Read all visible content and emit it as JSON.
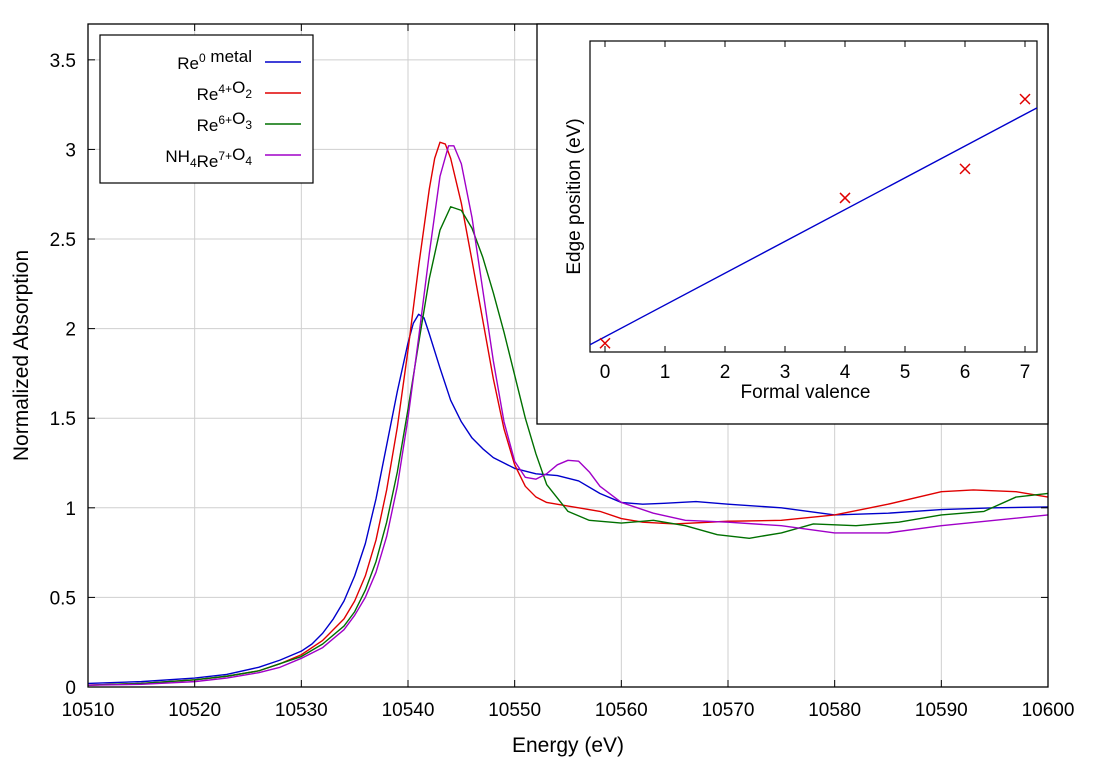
{
  "chart_data": [
    {
      "type": "line",
      "xlabel": "Energy (eV)",
      "ylabel": "Normalized Absorption",
      "xlim": [
        10510,
        10600
      ],
      "ylim": [
        0,
        3.7
      ],
      "x_ticks": [
        10510,
        10520,
        10530,
        10540,
        10550,
        10560,
        10570,
        10580,
        10590,
        10600
      ],
      "y_ticks": [
        0,
        0.5,
        1,
        1.5,
        2,
        2.5,
        3,
        3.5
      ],
      "y_tick_labels": [
        "0",
        "0.5",
        "1",
        "1.5",
        "2",
        "2.5",
        "3",
        "3.5"
      ],
      "grid": true,
      "legend_position": "top-left",
      "series": [
        {
          "name": "Re0 metal",
          "label_parts": [
            {
              "t": "Re"
            },
            {
              "t": "0",
              "sup": true
            },
            {
              "t": " metal"
            }
          ],
          "color": "#0000cc",
          "points": [
            [
              10510,
              0.02
            ],
            [
              10515,
              0.03
            ],
            [
              10520,
              0.05
            ],
            [
              10523,
              0.07
            ],
            [
              10526,
              0.11
            ],
            [
              10528,
              0.15
            ],
            [
              10530,
              0.2
            ],
            [
              10531,
              0.24
            ],
            [
              10532,
              0.3
            ],
            [
              10533,
              0.38
            ],
            [
              10534,
              0.48
            ],
            [
              10535,
              0.62
            ],
            [
              10536,
              0.8
            ],
            [
              10537,
              1.05
            ],
            [
              10538,
              1.35
            ],
            [
              10539,
              1.65
            ],
            [
              10540,
              1.92
            ],
            [
              10540.5,
              2.03
            ],
            [
              10541,
              2.08
            ],
            [
              10541.5,
              2.06
            ],
            [
              10542,
              1.97
            ],
            [
              10543,
              1.78
            ],
            [
              10544,
              1.6
            ],
            [
              10545,
              1.48
            ],
            [
              10546,
              1.39
            ],
            [
              10547,
              1.33
            ],
            [
              10548,
              1.28
            ],
            [
              10549,
              1.25
            ],
            [
              10550,
              1.22
            ],
            [
              10552,
              1.19
            ],
            [
              10554,
              1.18
            ],
            [
              10556,
              1.15
            ],
            [
              10558,
              1.08
            ],
            [
              10560,
              1.03
            ],
            [
              10562,
              1.02
            ],
            [
              10564,
              1.025
            ],
            [
              10567,
              1.035
            ],
            [
              10570,
              1.02
            ],
            [
              10575,
              1.0
            ],
            [
              10580,
              0.96
            ],
            [
              10585,
              0.97
            ],
            [
              10590,
              0.99
            ],
            [
              10595,
              1.0
            ],
            [
              10600,
              1.005
            ]
          ]
        },
        {
          "name": "Re4+O2",
          "label_parts": [
            {
              "t": "Re"
            },
            {
              "t": "4+",
              "sup": true
            },
            {
              "t": "O"
            },
            {
              "t": "2",
              "sub": true
            }
          ],
          "color": "#e00000",
          "points": [
            [
              10510,
              0.01
            ],
            [
              10515,
              0.02
            ],
            [
              10520,
              0.04
            ],
            [
              10523,
              0.06
            ],
            [
              10526,
              0.09
            ],
            [
              10528,
              0.13
            ],
            [
              10530,
              0.18
            ],
            [
              10532,
              0.26
            ],
            [
              10534,
              0.38
            ],
            [
              10535,
              0.48
            ],
            [
              10536,
              0.62
            ],
            [
              10537,
              0.82
            ],
            [
              10538,
              1.1
            ],
            [
              10539,
              1.45
            ],
            [
              10540,
              1.88
            ],
            [
              10541,
              2.35
            ],
            [
              10542,
              2.78
            ],
            [
              10542.5,
              2.95
            ],
            [
              10543,
              3.04
            ],
            [
              10543.5,
              3.03
            ],
            [
              10544,
              2.95
            ],
            [
              10545,
              2.7
            ],
            [
              10546,
              2.38
            ],
            [
              10547,
              2.05
            ],
            [
              10548,
              1.72
            ],
            [
              10549,
              1.44
            ],
            [
              10550,
              1.24
            ],
            [
              10551,
              1.12
            ],
            [
              10552,
              1.06
            ],
            [
              10553,
              1.03
            ],
            [
              10555,
              1.01
            ],
            [
              10558,
              0.98
            ],
            [
              10560,
              0.94
            ],
            [
              10562,
              0.92
            ],
            [
              10565,
              0.91
            ],
            [
              10570,
              0.925
            ],
            [
              10575,
              0.93
            ],
            [
              10580,
              0.96
            ],
            [
              10585,
              1.02
            ],
            [
              10590,
              1.09
            ],
            [
              10593,
              1.1
            ],
            [
              10597,
              1.09
            ],
            [
              10600,
              1.06
            ]
          ]
        },
        {
          "name": "Re6+O3",
          "label_parts": [
            {
              "t": "Re"
            },
            {
              "t": "6+",
              "sup": true
            },
            {
              "t": "O"
            },
            {
              "t": "3",
              "sub": true
            }
          ],
          "color": "#007000",
          "points": [
            [
              10510,
              0.01
            ],
            [
              10515,
              0.02
            ],
            [
              10520,
              0.04
            ],
            [
              10523,
              0.06
            ],
            [
              10526,
              0.09
            ],
            [
              10528,
              0.13
            ],
            [
              10530,
              0.17
            ],
            [
              10532,
              0.24
            ],
            [
              10534,
              0.34
            ],
            [
              10535,
              0.42
            ],
            [
              10536,
              0.54
            ],
            [
              10537,
              0.7
            ],
            [
              10538,
              0.92
            ],
            [
              10539,
              1.2
            ],
            [
              10540,
              1.55
            ],
            [
              10541,
              1.92
            ],
            [
              10542,
              2.28
            ],
            [
              10543,
              2.55
            ],
            [
              10544,
              2.68
            ],
            [
              10545,
              2.66
            ],
            [
              10546,
              2.56
            ],
            [
              10547,
              2.4
            ],
            [
              10548,
              2.2
            ],
            [
              10549,
              1.98
            ],
            [
              10550,
              1.74
            ],
            [
              10551,
              1.5
            ],
            [
              10552,
              1.3
            ],
            [
              10553,
              1.13
            ],
            [
              10555,
              0.98
            ],
            [
              10557,
              0.93
            ],
            [
              10560,
              0.915
            ],
            [
              10563,
              0.93
            ],
            [
              10566,
              0.9
            ],
            [
              10569,
              0.85
            ],
            [
              10572,
              0.83
            ],
            [
              10575,
              0.86
            ],
            [
              10578,
              0.91
            ],
            [
              10582,
              0.9
            ],
            [
              10586,
              0.92
            ],
            [
              10590,
              0.96
            ],
            [
              10594,
              0.98
            ],
            [
              10597,
              1.06
            ],
            [
              10600,
              1.08
            ]
          ]
        },
        {
          "name": "NH4Re7+O4",
          "label_parts": [
            {
              "t": "NH"
            },
            {
              "t": "4",
              "sub": true
            },
            {
              "t": "Re"
            },
            {
              "t": "7+",
              "sup": true
            },
            {
              "t": "O"
            },
            {
              "t": "4",
              "sub": true
            }
          ],
          "color": "#a000c8",
          "points": [
            [
              10510,
              0.01
            ],
            [
              10515,
              0.015
            ],
            [
              10520,
              0.03
            ],
            [
              10523,
              0.05
            ],
            [
              10526,
              0.08
            ],
            [
              10528,
              0.11
            ],
            [
              10530,
              0.16
            ],
            [
              10532,
              0.22
            ],
            [
              10534,
              0.32
            ],
            [
              10535,
              0.4
            ],
            [
              10536,
              0.5
            ],
            [
              10537,
              0.64
            ],
            [
              10538,
              0.84
            ],
            [
              10539,
              1.12
            ],
            [
              10540,
              1.5
            ],
            [
              10541,
              1.95
            ],
            [
              10542,
              2.42
            ],
            [
              10543,
              2.85
            ],
            [
              10543.8,
              3.02
            ],
            [
              10544.3,
              3.02
            ],
            [
              10545,
              2.92
            ],
            [
              10546,
              2.62
            ],
            [
              10547,
              2.22
            ],
            [
              10548,
              1.82
            ],
            [
              10549,
              1.48
            ],
            [
              10550,
              1.26
            ],
            [
              10551,
              1.17
            ],
            [
              10552,
              1.16
            ],
            [
              10553,
              1.19
            ],
            [
              10554,
              1.24
            ],
            [
              10555,
              1.265
            ],
            [
              10556,
              1.26
            ],
            [
              10557,
              1.2
            ],
            [
              10558,
              1.12
            ],
            [
              10560,
              1.03
            ],
            [
              10563,
              0.97
            ],
            [
              10566,
              0.93
            ],
            [
              10570,
              0.92
            ],
            [
              10575,
              0.9
            ],
            [
              10580,
              0.86
            ],
            [
              10585,
              0.86
            ],
            [
              10590,
              0.9
            ],
            [
              10595,
              0.93
            ],
            [
              10600,
              0.96
            ]
          ]
        }
      ]
    },
    {
      "type": "scatter",
      "xlabel": "Formal valence",
      "ylabel": "Edge position (eV)",
      "xlim": [
        -0.25,
        7.2
      ],
      "x_ticks": [
        0,
        1,
        2,
        3,
        4,
        5,
        6,
        7
      ],
      "ylim": [
        -0.3,
        10.4
      ],
      "y_tick_labels_shown": false,
      "series": [
        {
          "marker": "x",
          "color": "#e00000",
          "points": [
            [
              0,
              0.0
            ],
            [
              4,
              5.0
            ],
            [
              6,
              6.0
            ],
            [
              7,
              8.4
            ]
          ]
        }
      ],
      "fit_line": {
        "color": "#0000cc",
        "x": [
          -0.25,
          7.2
        ],
        "y": [
          -0.05,
          8.1
        ]
      }
    }
  ]
}
